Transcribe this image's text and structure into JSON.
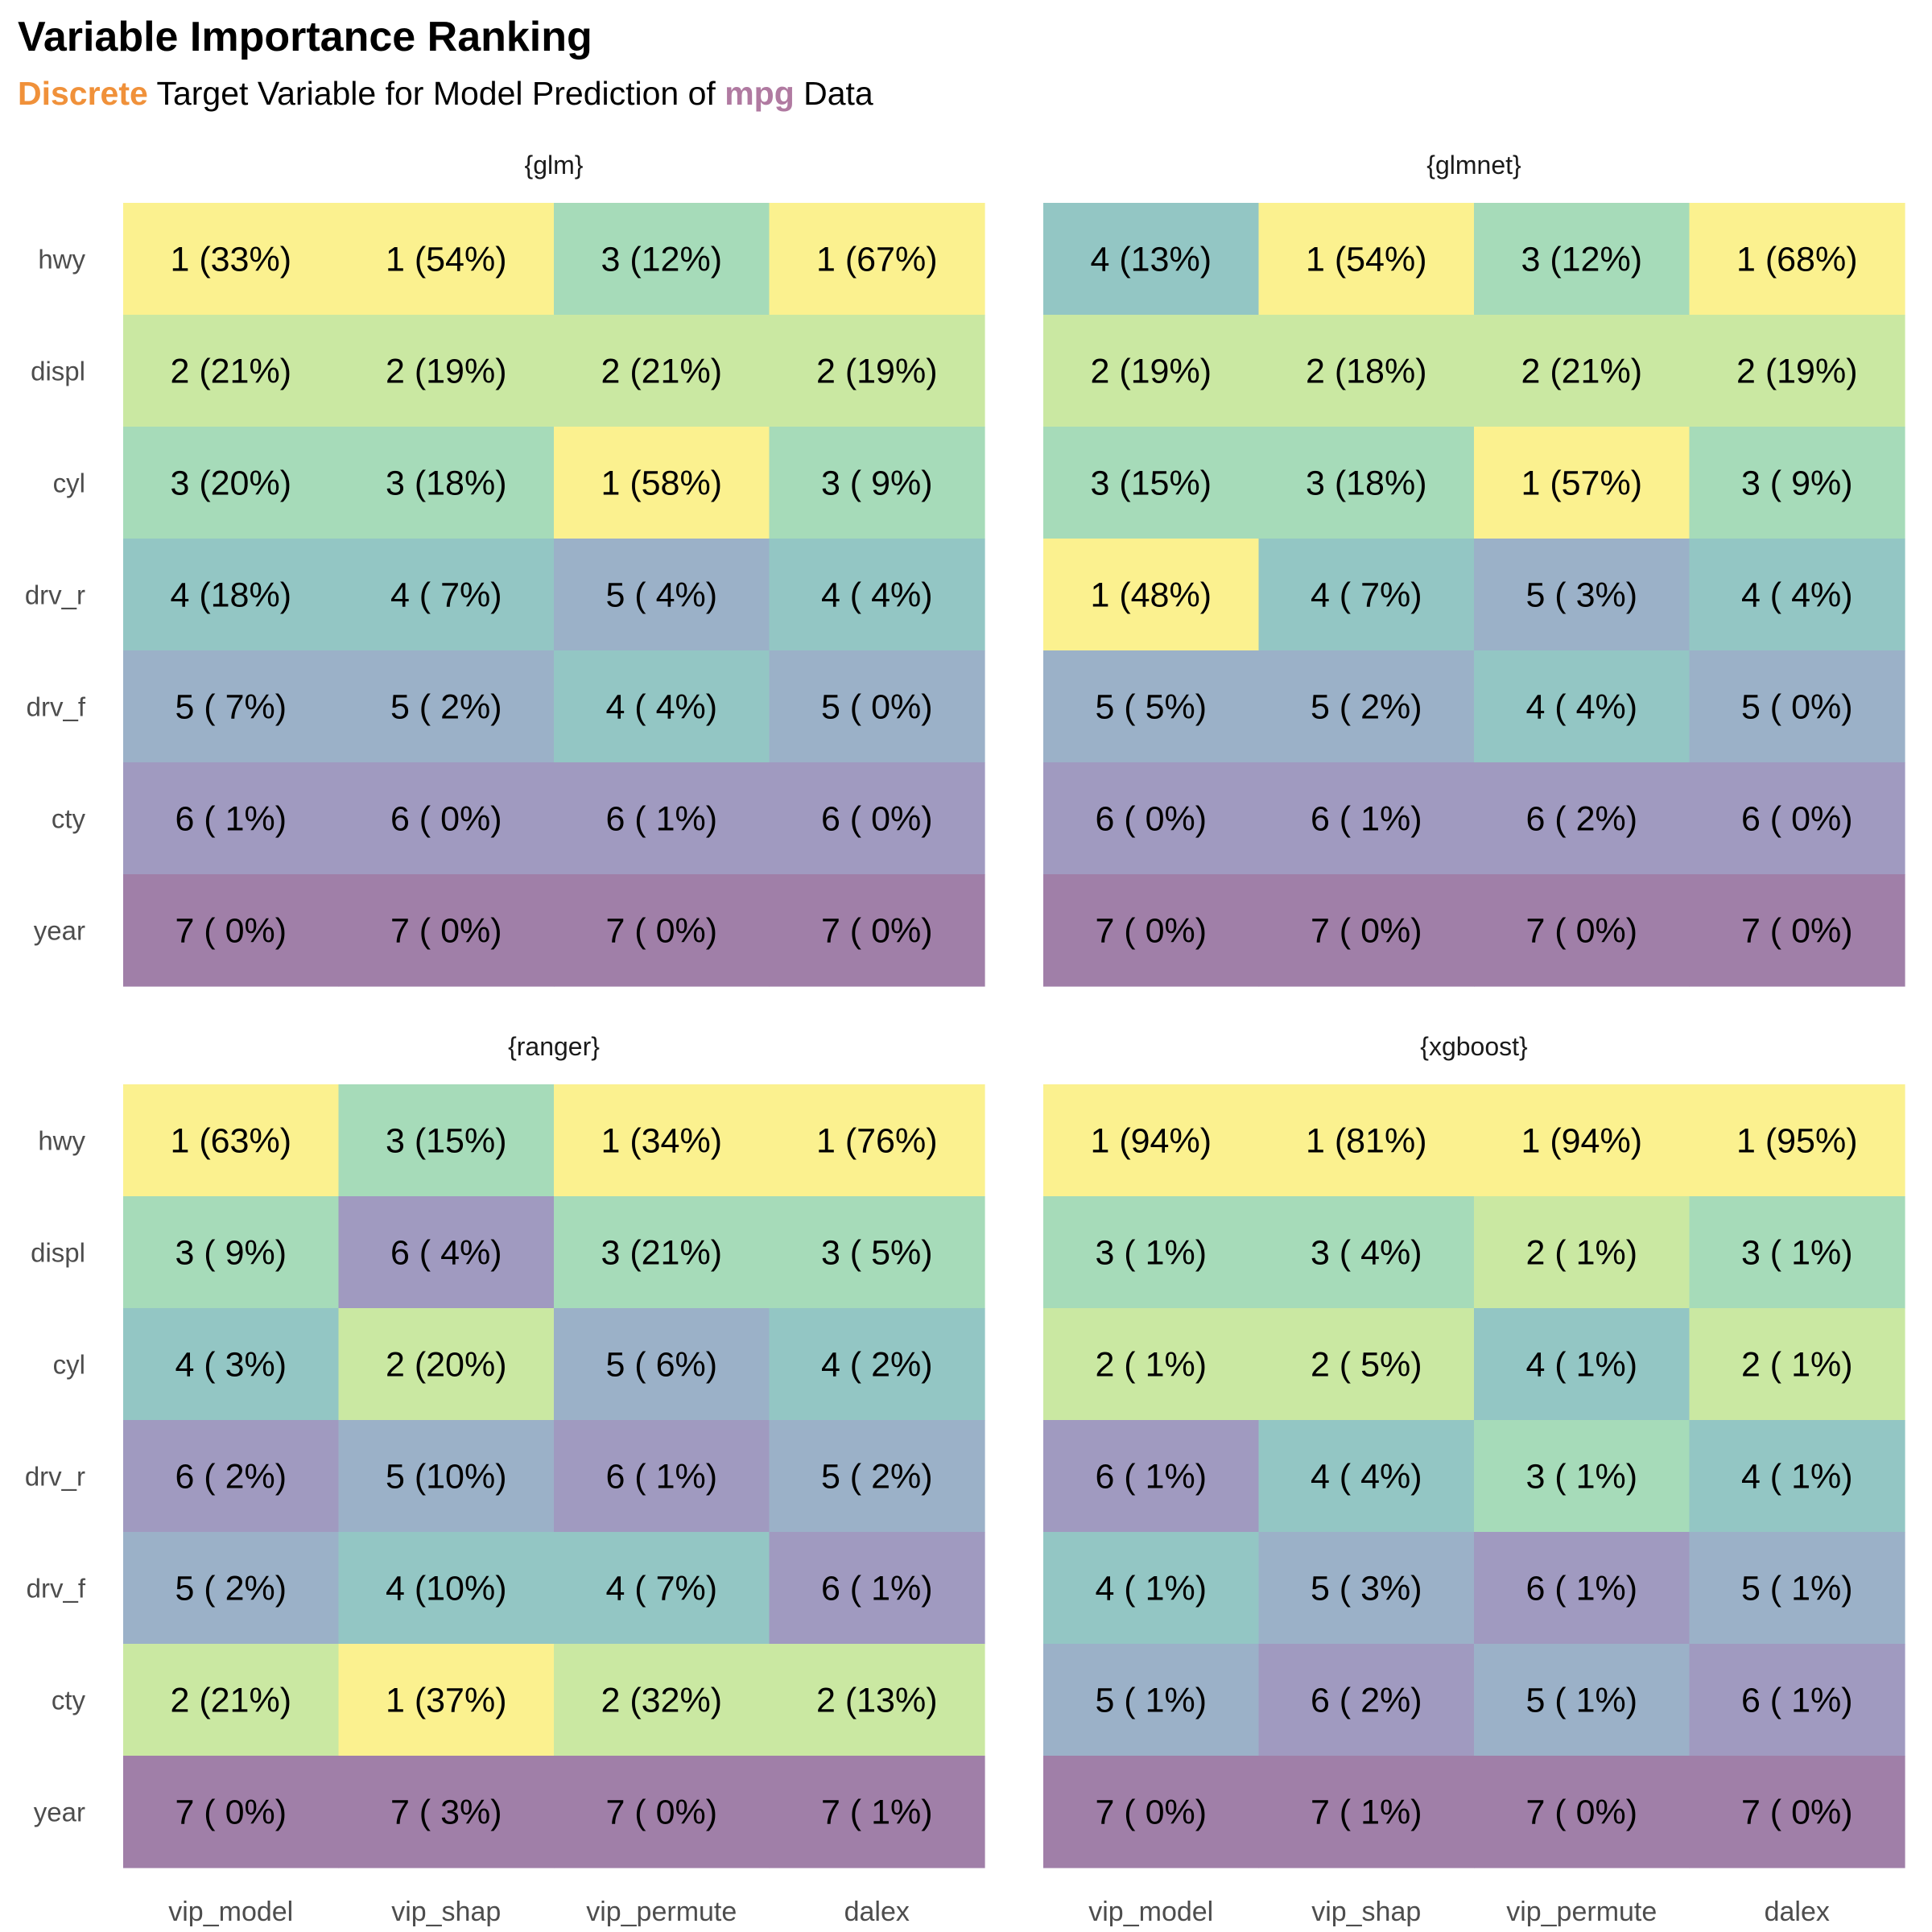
{
  "chart_data": {
    "type": "heatmap",
    "title": "Variable Importance Ranking",
    "subtitle": {
      "highlight1": "Discrete",
      "middle": " Target Variable for Model Prediction of ",
      "highlight2": "mpg",
      "end": " Data"
    },
    "colors": {
      "highlight1": "#F0913A",
      "highlight2": "#B07AA1",
      "rank_scale": [
        "#FBF18F",
        "#CAE8A2",
        "#A6DBB9",
        "#93C6C4",
        "#9BB1C8",
        "#A09AC0",
        "#A07FA8"
      ]
    },
    "rows": [
      "hwy",
      "displ",
      "cyl",
      "drv_r",
      "drv_f",
      "cty",
      "year"
    ],
    "columns": [
      "vip_model",
      "vip_shap",
      "vip_permute",
      "dalex"
    ],
    "facets": [
      {
        "name": "{glm}",
        "ranks": [
          [
            1,
            1,
            3,
            1
          ],
          [
            2,
            2,
            2,
            2
          ],
          [
            3,
            3,
            1,
            3
          ],
          [
            4,
            4,
            5,
            4
          ],
          [
            5,
            5,
            4,
            5
          ],
          [
            6,
            6,
            6,
            6
          ],
          [
            7,
            7,
            7,
            7
          ]
        ],
        "labels": [
          [
            "1 (33%)",
            "1 (54%)",
            "3 (12%)",
            "1 (67%)"
          ],
          [
            "2 (21%)",
            "2 (19%)",
            "2 (21%)",
            "2 (19%)"
          ],
          [
            "3 (20%)",
            "3 (18%)",
            "1 (58%)",
            "3 ( 9%)"
          ],
          [
            "4 (18%)",
            "4 ( 7%)",
            "5 ( 4%)",
            "4 ( 4%)"
          ],
          [
            "5 ( 7%)",
            "5 ( 2%)",
            "4 ( 4%)",
            "5 ( 0%)"
          ],
          [
            "6 ( 1%)",
            "6 ( 0%)",
            "6 ( 1%)",
            "6 ( 0%)"
          ],
          [
            "7 ( 0%)",
            "7 ( 0%)",
            "7 ( 0%)",
            "7 ( 0%)"
          ]
        ]
      },
      {
        "name": "{glmnet}",
        "ranks": [
          [
            4,
            1,
            3,
            1
          ],
          [
            2,
            2,
            2,
            2
          ],
          [
            3,
            3,
            1,
            3
          ],
          [
            1,
            4,
            5,
            4
          ],
          [
            5,
            5,
            4,
            5
          ],
          [
            6,
            6,
            6,
            6
          ],
          [
            7,
            7,
            7,
            7
          ]
        ],
        "labels": [
          [
            "4 (13%)",
            "1 (54%)",
            "3 (12%)",
            "1 (68%)"
          ],
          [
            "2 (19%)",
            "2 (18%)",
            "2 (21%)",
            "2 (19%)"
          ],
          [
            "3 (15%)",
            "3 (18%)",
            "1 (57%)",
            "3 ( 9%)"
          ],
          [
            "1 (48%)",
            "4 ( 7%)",
            "5 ( 3%)",
            "4 ( 4%)"
          ],
          [
            "5 ( 5%)",
            "5 ( 2%)",
            "4 ( 4%)",
            "5 ( 0%)"
          ],
          [
            "6 ( 0%)",
            "6 ( 1%)",
            "6 ( 2%)",
            "6 ( 0%)"
          ],
          [
            "7 ( 0%)",
            "7 ( 0%)",
            "7 ( 0%)",
            "7 ( 0%)"
          ]
        ]
      },
      {
        "name": "{ranger}",
        "ranks": [
          [
            1,
            3,
            1,
            1
          ],
          [
            3,
            6,
            3,
            3
          ],
          [
            4,
            2,
            5,
            4
          ],
          [
            6,
            5,
            6,
            5
          ],
          [
            5,
            4,
            4,
            6
          ],
          [
            2,
            1,
            2,
            2
          ],
          [
            7,
            7,
            7,
            7
          ]
        ],
        "labels": [
          [
            "1 (63%)",
            "3 (15%)",
            "1 (34%)",
            "1 (76%)"
          ],
          [
            "3 ( 9%)",
            "6 ( 4%)",
            "3 (21%)",
            "3 ( 5%)"
          ],
          [
            "4 ( 3%)",
            "2 (20%)",
            "5 ( 6%)",
            "4 ( 2%)"
          ],
          [
            "6 ( 2%)",
            "5 (10%)",
            "6 ( 1%)",
            "5 ( 2%)"
          ],
          [
            "5 ( 2%)",
            "4 (10%)",
            "4 ( 7%)",
            "6 ( 1%)"
          ],
          [
            "2 (21%)",
            "1 (37%)",
            "2 (32%)",
            "2 (13%)"
          ],
          [
            "7 ( 0%)",
            "7 ( 3%)",
            "7 ( 0%)",
            "7 ( 1%)"
          ]
        ]
      },
      {
        "name": "{xgboost}",
        "ranks": [
          [
            1,
            1,
            1,
            1
          ],
          [
            3,
            3,
            2,
            3
          ],
          [
            2,
            2,
            4,
            2
          ],
          [
            6,
            4,
            3,
            4
          ],
          [
            4,
            5,
            6,
            5
          ],
          [
            5,
            6,
            5,
            6
          ],
          [
            7,
            7,
            7,
            7
          ]
        ],
        "labels": [
          [
            "1 (94%)",
            "1 (81%)",
            "1 (94%)",
            "1 (95%)"
          ],
          [
            "3 ( 1%)",
            "3 ( 4%)",
            "2 ( 1%)",
            "3 ( 1%)"
          ],
          [
            "2 ( 1%)",
            "2 ( 5%)",
            "4 ( 1%)",
            "2 ( 1%)"
          ],
          [
            "6 ( 1%)",
            "4 ( 4%)",
            "3 ( 1%)",
            "4 ( 1%)"
          ],
          [
            "4 ( 1%)",
            "5 ( 3%)",
            "6 ( 1%)",
            "5 ( 1%)"
          ],
          [
            "5 ( 1%)",
            "6 ( 2%)",
            "5 ( 1%)",
            "6 ( 1%)"
          ],
          [
            "7 ( 0%)",
            "7 ( 1%)",
            "7 ( 0%)",
            "7 ( 0%)"
          ]
        ]
      }
    ]
  }
}
